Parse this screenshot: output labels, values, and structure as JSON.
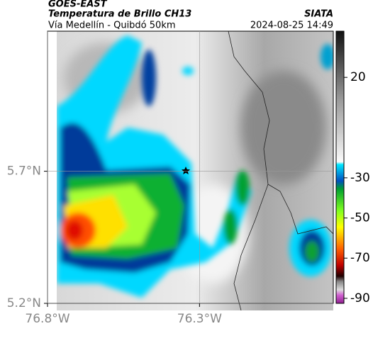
{
  "header": {
    "title": "GOES-EAST",
    "subtitle": "Temperatura de Brillo CH13",
    "route": "Vía Medellín - Quibdó 50km",
    "source": "SIATA",
    "timestamp": "2024-08-25 14:49"
  },
  "map": {
    "xlim": [
      -76.8,
      -75.86
    ],
    "ylim": [
      5.2,
      6.23
    ],
    "xticks": [
      {
        "value": -76.8,
        "label": "76.8°W"
      },
      {
        "value": -76.3,
        "label": "76.3°W"
      }
    ],
    "yticks": [
      {
        "value": 5.2,
        "label": "5.2°N"
      },
      {
        "value": 5.7,
        "label": "5.7°N"
      }
    ],
    "grid": true
  },
  "colorbar": {
    "lim": [
      -92.5,
      43
    ],
    "ticks": [
      20,
      -30,
      -50,
      -70,
      -90
    ]
  }
}
